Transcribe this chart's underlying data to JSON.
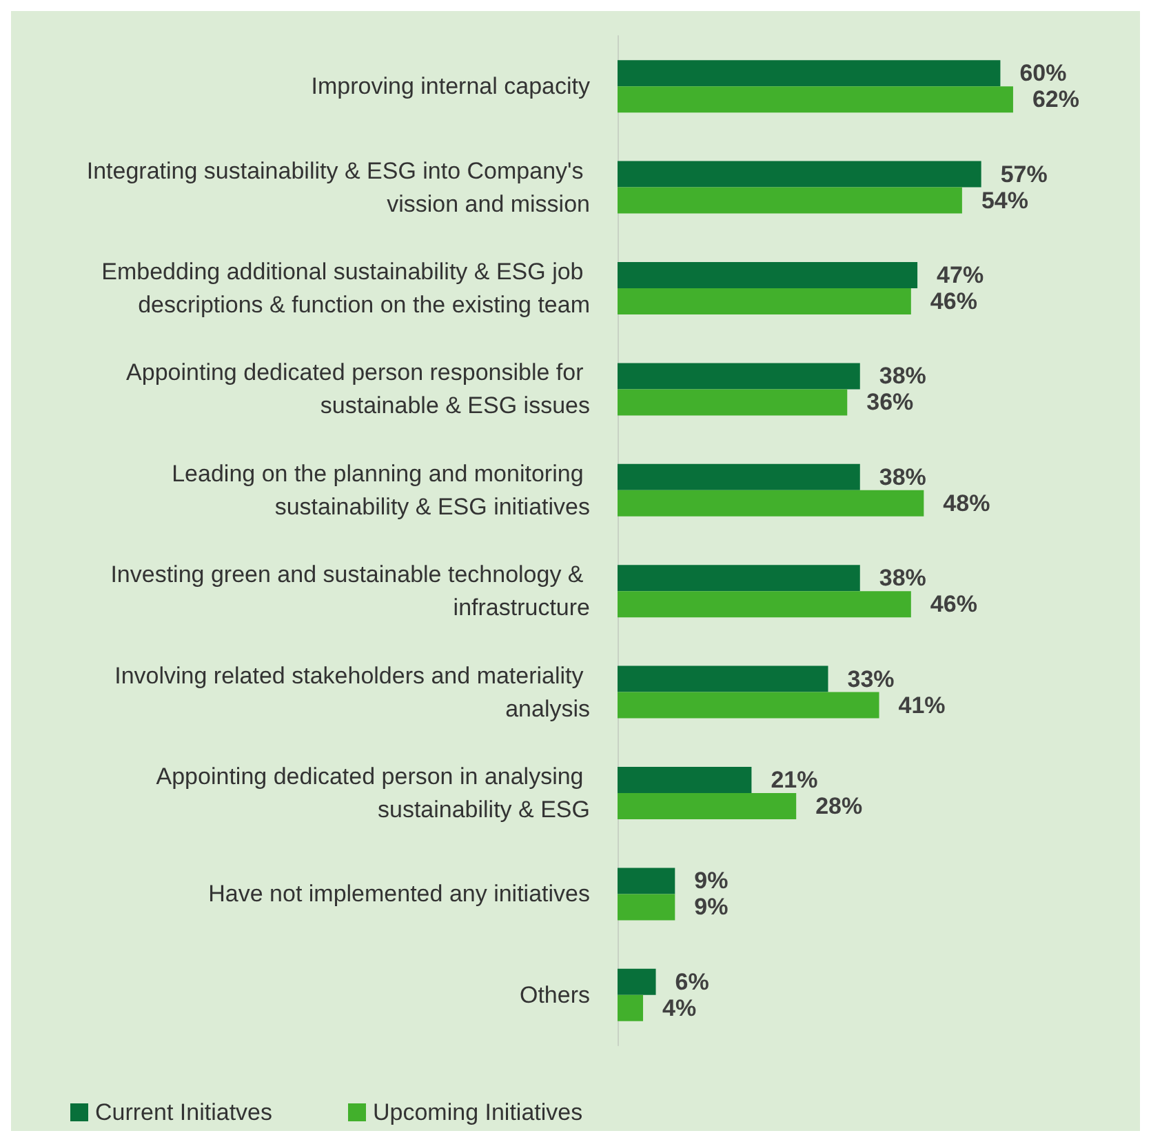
{
  "chart_data": {
    "type": "bar",
    "orientation": "horizontal",
    "categories": [
      "Improving internal capacity",
      "Integrating sustainability & ESG into Company's vission and mission",
      "Embedding additional sustainability & ESG job descriptions & function on the existing team",
      "Appointing dedicated person responsible for sustainable & ESG issues",
      "Leading on the planning and monitoring sustainability & ESG initiatives",
      "Investing green and sustainable technology & infrastructure",
      "Involving related stakeholders and materiality analysis",
      "Appointing dedicated person in analysing sustainability & ESG",
      "Have not implemented any initiatives",
      "Others"
    ],
    "series": [
      {
        "name": "Current Initiatves",
        "color": "#08703a",
        "values": [
          60,
          57,
          47,
          38,
          38,
          38,
          33,
          21,
          9,
          6
        ],
        "value_labels": [
          "60%",
          "57%",
          "47%",
          "38%",
          "38%",
          "38%",
          "33%",
          "21%",
          "9%",
          "6%"
        ]
      },
      {
        "name": "Upcoming Initiatives",
        "color": "#42b02c",
        "values": [
          62,
          54,
          46,
          36,
          48,
          46,
          41,
          28,
          9,
          4
        ],
        "value_labels": [
          "62%",
          "54%",
          "46%",
          "36%",
          "48%",
          "46%",
          "41%",
          "28%",
          "9%",
          "4%"
        ]
      }
    ],
    "grid": false,
    "legend": "bottom left"
  }
}
